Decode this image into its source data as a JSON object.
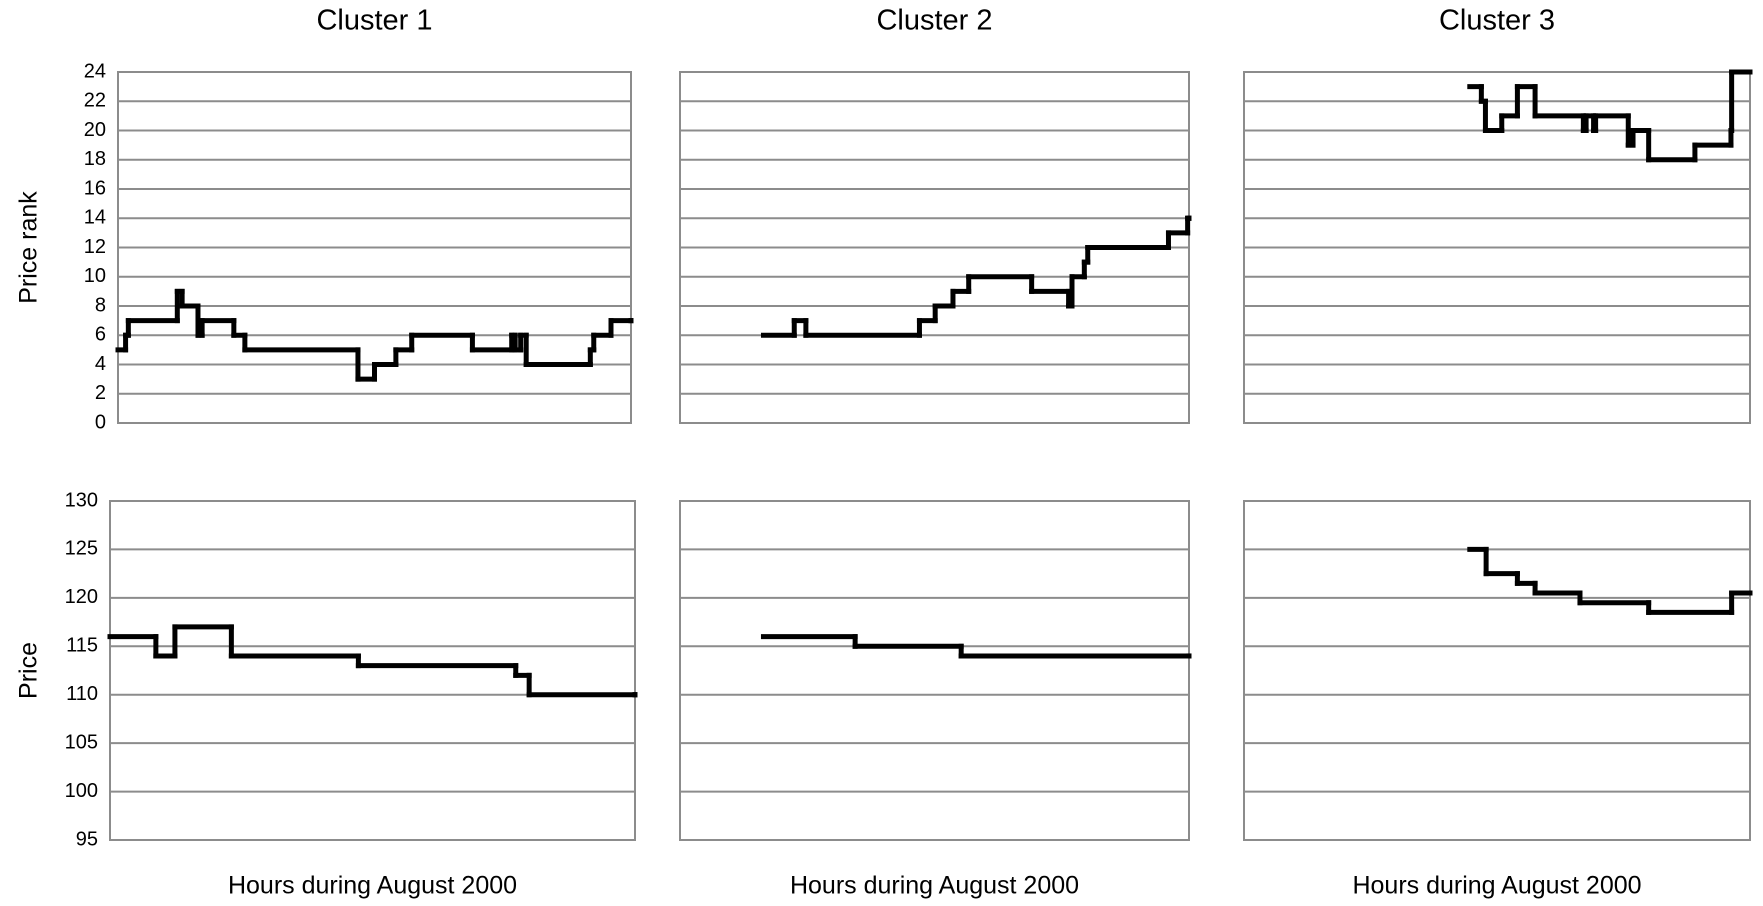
{
  "chart_data": [
    {
      "type": "line",
      "line_shape": "step",
      "title": "Cluster 1",
      "ylabel": "Price rank",
      "color": "#000000",
      "grid": true,
      "show_ytick_labels": true,
      "xlim": [
        0,
        744
      ],
      "ylim": [
        0,
        24
      ],
      "yticks": [
        0,
        2,
        4,
        6,
        8,
        10,
        12,
        14,
        16,
        18,
        20,
        22,
        24
      ],
      "x": [
        0,
        11,
        15,
        86,
        93,
        116,
        122,
        168,
        184,
        348,
        372,
        403,
        426,
        514,
        571,
        576,
        584,
        592,
        685,
        690,
        715,
        744
      ],
      "values": [
        5,
        6,
        7,
        9,
        8,
        6,
        7,
        6,
        5,
        3,
        4,
        5,
        6,
        5,
        6,
        5,
        6,
        4,
        5,
        6,
        7,
        7
      ]
    },
    {
      "type": "line",
      "line_shape": "step",
      "title": "Cluster 2",
      "color": "#000000",
      "grid": true,
      "show_ytick_labels": false,
      "xlim": [
        0,
        744
      ],
      "ylim": [
        0,
        24
      ],
      "yticks": [
        0,
        2,
        4,
        6,
        8,
        10,
        12,
        14,
        16,
        18,
        20,
        22,
        24
      ],
      "x": [
        122,
        167,
        184,
        350,
        373,
        399,
        422,
        514,
        568,
        573,
        591,
        596,
        714,
        742,
        744
      ],
      "values": [
        6,
        7,
        6,
        7,
        8,
        9,
        10,
        9,
        8,
        10,
        11,
        12,
        13,
        14,
        14
      ]
    },
    {
      "type": "line",
      "line_shape": "step",
      "title": "Cluster 3",
      "color": "#000000",
      "grid": true,
      "show_ytick_labels": false,
      "xlim": [
        0,
        744
      ],
      "ylim": [
        0,
        24
      ],
      "yticks": [
        0,
        2,
        4,
        6,
        8,
        10,
        12,
        14,
        16,
        18,
        20,
        22,
        24
      ],
      "x": [
        332,
        349,
        355,
        379,
        402,
        428,
        499,
        503,
        514,
        517,
        565,
        572,
        595,
        663,
        716,
        717,
        744
      ],
      "values": [
        23,
        22,
        20,
        21,
        23,
        21,
        20,
        21,
        20,
        21,
        19,
        20,
        18,
        19,
        20,
        24,
        24
      ]
    },
    {
      "type": "line",
      "line_shape": "step",
      "ylabel": "Price",
      "xlabel": "Hours during August 2000",
      "color": "#000000",
      "grid": true,
      "show_ytick_labels": true,
      "xlim": [
        0,
        744
      ],
      "ylim": [
        95,
        130
      ],
      "yticks": [
        95,
        100,
        105,
        110,
        115,
        120,
        125,
        130
      ],
      "x": [
        0,
        65,
        92,
        172,
        352,
        575,
        594,
        744
      ],
      "values": [
        116,
        114,
        117,
        114,
        113,
        112,
        110,
        110
      ]
    },
    {
      "type": "line",
      "line_shape": "step",
      "xlabel": "Hours during August 2000",
      "color": "#000000",
      "grid": true,
      "show_ytick_labels": false,
      "xlim": [
        0,
        744
      ],
      "ylim": [
        95,
        130
      ],
      "yticks": [
        95,
        100,
        105,
        110,
        115,
        120,
        125,
        130
      ],
      "x": [
        122,
        256,
        411,
        744
      ],
      "values": [
        116,
        115,
        114,
        114
      ]
    },
    {
      "type": "line",
      "line_shape": "step",
      "xlabel": "Hours during August 2000",
      "color": "#000000",
      "grid": true,
      "show_ytick_labels": false,
      "xlim": [
        0,
        744
      ],
      "ylim": [
        95,
        130
      ],
      "yticks": [
        95,
        100,
        105,
        110,
        115,
        120,
        125,
        130
      ],
      "x": [
        332,
        356,
        402,
        428,
        494,
        595,
        717,
        744
      ],
      "values": [
        125,
        122.5,
        121.5,
        120.5,
        119.5,
        118.5,
        120.5,
        120.5
      ]
    }
  ]
}
